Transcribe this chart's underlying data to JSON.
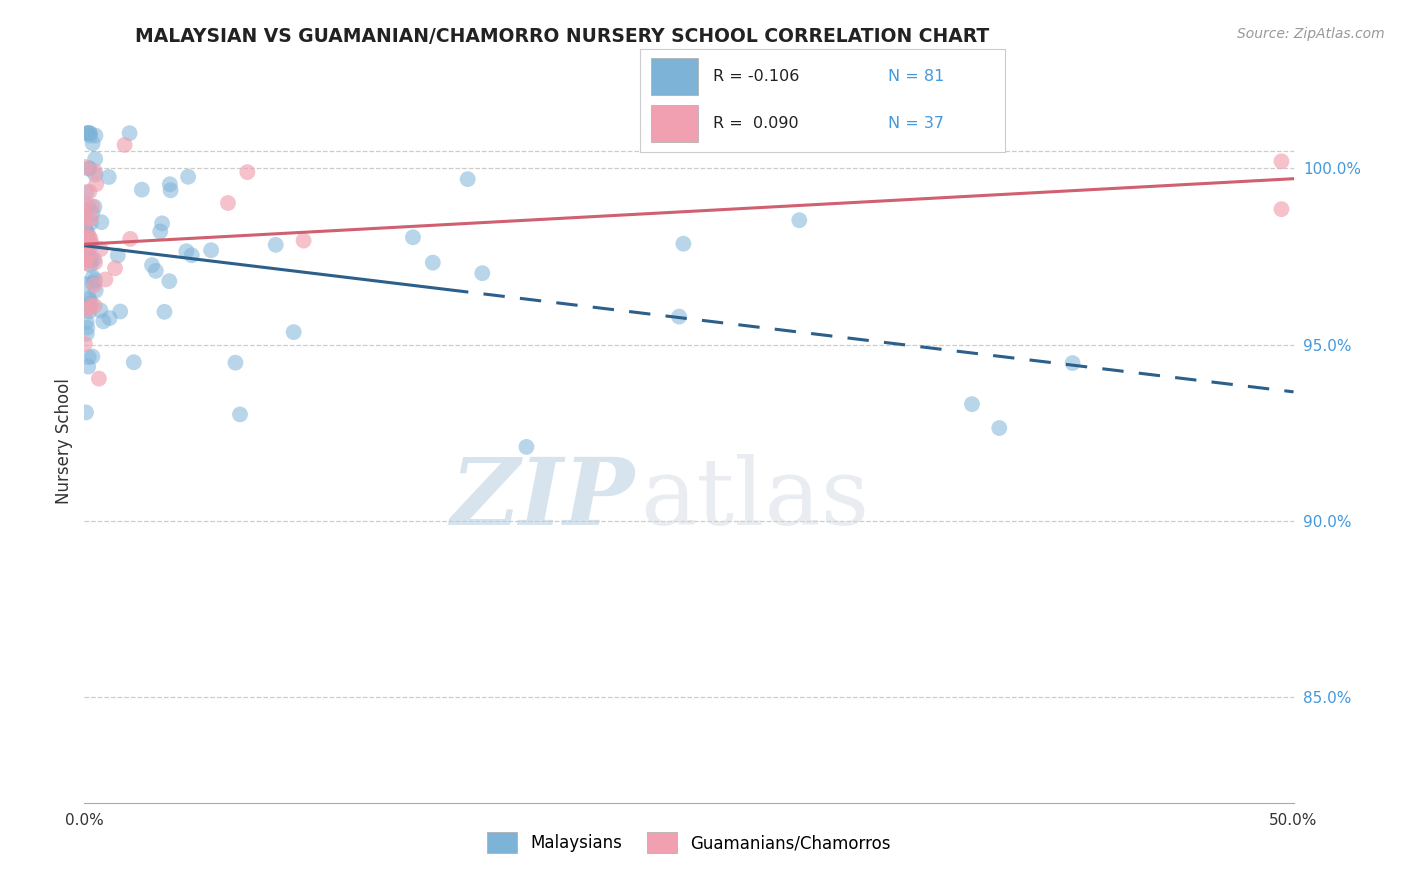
{
  "title": "MALAYSIAN VS GUAMANIAN/CHAMORRO NURSERY SCHOOL CORRELATION CHART",
  "source": "Source: ZipAtlas.com",
  "ylabel": "Nursery School",
  "right_yticks": [
    85.0,
    90.0,
    95.0,
    100.0
  ],
  "xlim": [
    0.0,
    50.0
  ],
  "ylim": [
    82.0,
    102.5
  ],
  "legend_blue_r": "R = -0.106",
  "legend_blue_n": "N = 81",
  "legend_pink_r": "R =  0.090",
  "legend_pink_n": "N = 37",
  "blue_color": "#7EB3D8",
  "pink_color": "#F0A0B0",
  "blue_line_color": "#2C5F8A",
  "pink_line_color": "#D06070",
  "watermark_zip": "ZIP",
  "watermark_atlas": "atlas",
  "background_color": "#FFFFFF",
  "grid_color": "#CCCCCC"
}
